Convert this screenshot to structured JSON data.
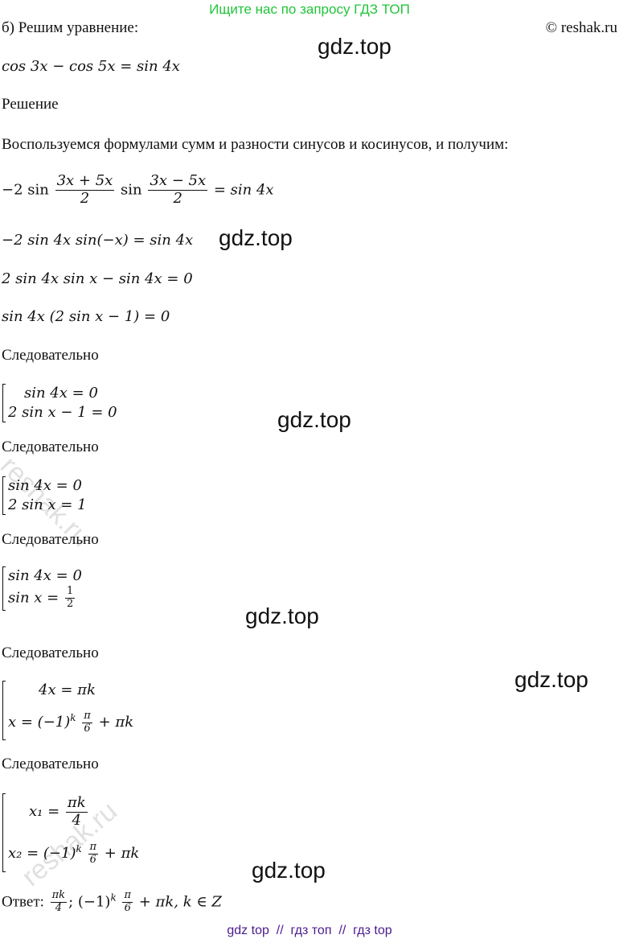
{
  "header": {
    "banner": "Ищите нас по запросу ГДЗ ТОП",
    "copyright": "© reshak.ru",
    "task": "б) Решим уравнение:"
  },
  "watermarks": {
    "gdz": "gdz.top",
    "reshak": "reshak.ru"
  },
  "equation": "cos 3x − cos 5x = sin 4x",
  "solution_label": "Решение",
  "intro": "Воспользуемся формулами сумм и разности синусов и косинусов, и получим:",
  "steps": {
    "s1": {
      "pre": "−2 sin",
      "n1": "3x + 5x",
      "d1": "2",
      "mid": "sin",
      "n2": "3x − 5x",
      "d2": "2",
      "post": "= sin 4x"
    },
    "s2": "−2 sin 4x sin(−x) = sin 4x",
    "s3": "2 sin 4x sin x − sin 4x = 0",
    "s4": "sin 4x (2 sin x − 1) = 0"
  },
  "therefore": "Следовательно",
  "systems": {
    "a": [
      "sin 4x = 0",
      "2 sin x − 1 = 0"
    ],
    "b": [
      "sin 4x = 0",
      "2 sin x = 1"
    ],
    "c": {
      "l1": "sin 4x = 0",
      "l2pre": "sin x =",
      "num": "1",
      "den": "2"
    },
    "d": {
      "l1": "4x = πk",
      "l2pre": "x = (−1)",
      "exp": "k",
      "num": "π",
      "den": "6",
      "post": "+ πk"
    },
    "e": {
      "l1pre": "x₁ =",
      "l1num": "πk",
      "l1den": "4",
      "l2pre": "x₂ = (−1)",
      "exp": "k",
      "num": "π",
      "den": "6",
      "post": "+ πk"
    }
  },
  "answer": {
    "label": "Ответ:",
    "n1": "πk",
    "d1": "4",
    "sep": "; (−1)",
    "exp": "k",
    "n2": "π",
    "d2": "6",
    "post": "+ πk,  k ∈ Z"
  },
  "footer": "gdz top  //  гдз топ  //  гдз top",
  "colors": {
    "banner": "#22c43a",
    "footer": "#4b1a8c"
  }
}
